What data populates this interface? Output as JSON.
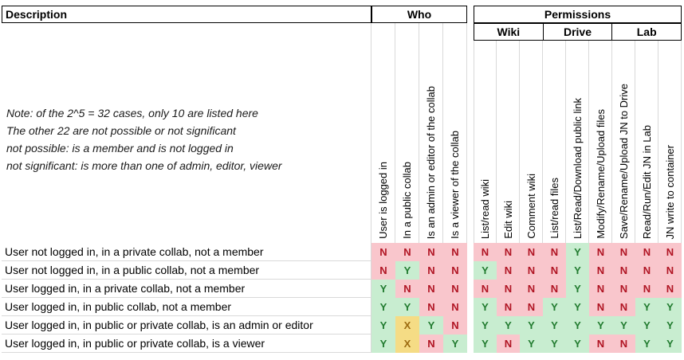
{
  "table": {
    "description_header": "Description",
    "who_header": "Who",
    "permissions_header": "Permissions",
    "note": {
      "lines": [
        "Note: of the 2^5 = 32 cases, only 10 are listed here",
        "The other 22 are not possible or not significant",
        "not possible: is a member and is not logged in",
        "not significant: is more than one of admin, editor, viewer"
      ]
    },
    "who_columns": [
      "User is logged in",
      "In a public collab",
      "Is an admin or editor of the collab",
      "Is a viewer of the collab"
    ],
    "permission_groups": [
      {
        "label": "Wiki",
        "columns": [
          "List/read wiki",
          "Edit wiki",
          "Comment wiki"
        ]
      },
      {
        "label": "Drive",
        "columns": [
          "List/read files",
          "List/Read/Download public link",
          "Modify/Rename/Upload files"
        ]
      },
      {
        "label": "Lab",
        "columns": [
          "Save/Rename/Upload JN to Drive",
          "Read/Run/Edit JN in Lab",
          "JN write to container"
        ]
      }
    ],
    "rows": [
      {
        "description": "User not logged in, in a private collab, not a member",
        "who": [
          "N",
          "N",
          "N",
          "N"
        ],
        "permissions": [
          "N",
          "N",
          "N",
          "N",
          "Y",
          "N",
          "N",
          "N",
          "N"
        ]
      },
      {
        "description": "User not logged in, in a public collab, not a member",
        "who": [
          "N",
          "Y",
          "N",
          "N"
        ],
        "permissions": [
          "Y",
          "N",
          "N",
          "N",
          "Y",
          "N",
          "N",
          "N",
          "N"
        ]
      },
      {
        "description": "User logged in, in a private collab, not a member",
        "who": [
          "Y",
          "N",
          "N",
          "N"
        ],
        "permissions": [
          "N",
          "N",
          "N",
          "N",
          "Y",
          "N",
          "N",
          "N",
          "N"
        ]
      },
      {
        "description": "User logged in, in public collab, not a member",
        "who": [
          "Y",
          "Y",
          "N",
          "N"
        ],
        "permissions": [
          "Y",
          "N",
          "N",
          "Y",
          "Y",
          "N",
          "N",
          "Y",
          "Y"
        ]
      },
      {
        "description": "User logged in, in public or private collab, is an admin or editor",
        "who": [
          "Y",
          "X",
          "Y",
          "N"
        ],
        "permissions": [
          "Y",
          "Y",
          "Y",
          "Y",
          "Y",
          "Y",
          "Y",
          "Y",
          "Y"
        ]
      },
      {
        "description": "User logged in, in public or private collab, is a viewer",
        "who": [
          "Y",
          "X",
          "N",
          "Y"
        ],
        "permissions": [
          "Y",
          "N",
          "Y",
          "Y",
          "Y",
          "N",
          "N",
          "Y",
          "Y"
        ]
      }
    ],
    "value_styles": {
      "Y": {
        "bg": "#C8EDD0",
        "fg": "#217B2F"
      },
      "N": {
        "bg": "#F9C6CC",
        "fg": "#B01423"
      },
      "X": {
        "bg": "#F5DC85",
        "fg": "#9C6B10"
      }
    },
    "gridline_color": "#D9D9D9",
    "border_color": "#000000"
  }
}
